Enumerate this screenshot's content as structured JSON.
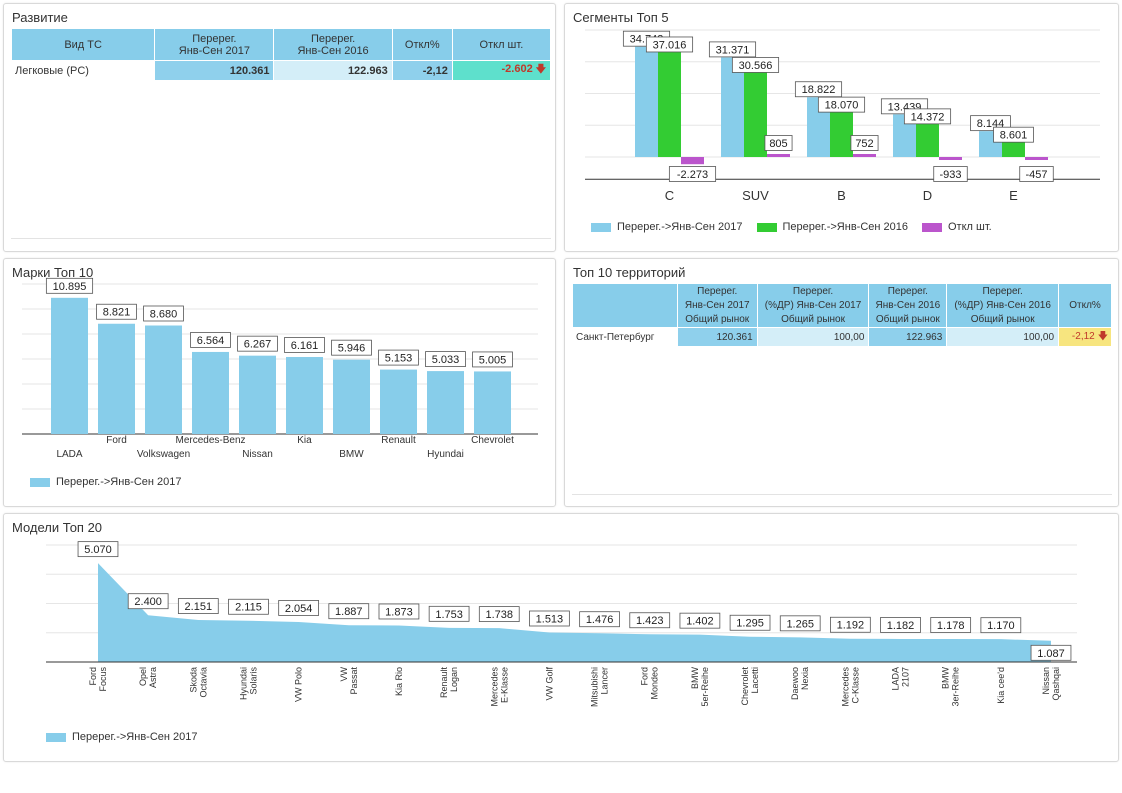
{
  "colors": {
    "header_bg": "#87cdea",
    "bar_2017": "#87cdea",
    "bar_2016": "#33cc33",
    "bar_diff": "#bb55cc",
    "neg_highlight": "#5ee0cc",
    "pct_neg": "#f7e57f",
    "arrow": "#c0392b"
  },
  "razvitie": {
    "title": "Развитие",
    "headers": {
      "type": "Вид ТС",
      "y2017_l1": "Перерег.",
      "y2017_l2": "Янв-Сен 2017",
      "y2016_l1": "Перерег.",
      "y2016_l2": "Янв-Сен 2016",
      "pct": "Откл%",
      "diff": "Откл шт."
    },
    "row": {
      "type": "Легковые (PC)",
      "y2017": "120.361",
      "y2016": "122.963",
      "pct": "-2,12",
      "diff": "-2.602",
      "arrow_icon": "down-arrow-icon"
    }
  },
  "segments": {
    "title": "Сегменты Топ 5",
    "legend": [
      "Перерег.->Янв-Сен 2017",
      "Перерег.->Янв-Сен 2016",
      "Откл шт."
    ],
    "chart_data": {
      "type": "bar",
      "categories": [
        "C",
        "SUV",
        "B",
        "D",
        "E"
      ],
      "series": [
        {
          "name": "Перерег.->Янв-Сен 2017",
          "values": [
            34743,
            31371,
            18822,
            13439,
            8144
          ],
          "labels": [
            "34.743",
            "31.371",
            "18.822",
            "13.439",
            "8.144"
          ]
        },
        {
          "name": "Перерег.->Янв-Сен 2016",
          "values": [
            37016,
            30566,
            18070,
            14372,
            8601
          ],
          "labels": [
            "37.016",
            "30.566",
            "18.070",
            "14.372",
            "8.601"
          ]
        },
        {
          "name": "Откл шт.",
          "values": [
            -2273,
            805,
            752,
            -933,
            -457
          ],
          "labels": [
            "-2.273",
            "805",
            "752",
            "-933",
            "-457"
          ]
        }
      ]
    }
  },
  "brands": {
    "title": "Марки Топ 10",
    "legend": [
      "Перерег.->Янв-Сен 2017"
    ],
    "chart_data": {
      "type": "bar",
      "categories": [
        "LADA",
        "Ford",
        "Volkswagen",
        "Mercedes-Benz",
        "Nissan",
        "Kia",
        "BMW",
        "Renault",
        "Hyundai",
        "Chevrolet"
      ],
      "series": [
        {
          "name": "Перерег.->Янв-Сен 2017",
          "values": [
            10895,
            8821,
            8680,
            6564,
            6267,
            6161,
            5946,
            5153,
            5033,
            5005
          ],
          "labels": [
            "10.895",
            "8.821",
            "8.680",
            "6.564",
            "6.267",
            "6.161",
            "5.946",
            "5.153",
            "5.033",
            "5.005"
          ]
        }
      ]
    }
  },
  "territories": {
    "title": "Топ 10 территорий",
    "headers": [
      [
        "",
        "",
        ""
      ],
      [
        "Перерег.",
        "Янв-Сен 2017",
        "Общий рынок"
      ],
      [
        "Перерег.",
        "(%ДР) Янв-Сен 2017",
        "Общий рынок"
      ],
      [
        "Перерег.",
        "Янв-Сен 2016",
        "Общий рынок"
      ],
      [
        "Перерег.",
        "(%ДР) Янв-Сен 2016",
        "Общий рынок"
      ],
      [
        "Откл%",
        "",
        ""
      ]
    ],
    "row": {
      "name": "Санкт-Петербург",
      "v2017": "120.361",
      "p2017": "100,00",
      "v2016": "122.963",
      "p2016": "100,00",
      "pct": "-2,12"
    }
  },
  "models": {
    "title": "Модели Топ 20",
    "legend": [
      "Перерег.->Янв-Сен 2017"
    ],
    "chart_data": {
      "type": "area",
      "categories": [
        [
          "Ford",
          "Focus"
        ],
        [
          "Opel",
          "Astra"
        ],
        [
          "Skoda",
          "Octavia"
        ],
        [
          "Hyundai",
          "Solaris"
        ],
        [
          "VW Polo"
        ],
        [
          "VW",
          "Passat"
        ],
        [
          "Kia Rio"
        ],
        [
          "Renault",
          "Logan"
        ],
        [
          "Mercedes",
          "E-Klasse"
        ],
        [
          "VW Golf"
        ],
        [
          "Mitsubishi",
          "Lancer"
        ],
        [
          "Ford",
          "Mondeo"
        ],
        [
          "BMW",
          "5er-Reihe"
        ],
        [
          "Chevrolet",
          "Lacetti"
        ],
        [
          "Daewoo",
          "Nexia"
        ],
        [
          "Mercedes",
          "C-Klasse"
        ],
        [
          "LADA",
          "2107"
        ],
        [
          "BMW",
          "3er-Reihe"
        ],
        [
          "Kia cee'd"
        ],
        [
          "Nissan",
          "Qashqai"
        ]
      ],
      "series": [
        {
          "name": "Перерег.->Янв-Сен 2017",
          "values": [
            5070,
            2400,
            2151,
            2115,
            2054,
            1887,
            1873,
            1753,
            1738,
            1513,
            1476,
            1423,
            1402,
            1295,
            1265,
            1192,
            1182,
            1178,
            1170,
            1087
          ],
          "labels": [
            "5.070",
            "2.400",
            "2.151",
            "2.115",
            "2.054",
            "1.887",
            "1.873",
            "1.753",
            "1.738",
            "1.513",
            "1.476",
            "1.423",
            "1.402",
            "1.295",
            "1.265",
            "1.192",
            "1.182",
            "1.178",
            "1.170",
            "1.087"
          ]
        }
      ]
    }
  }
}
